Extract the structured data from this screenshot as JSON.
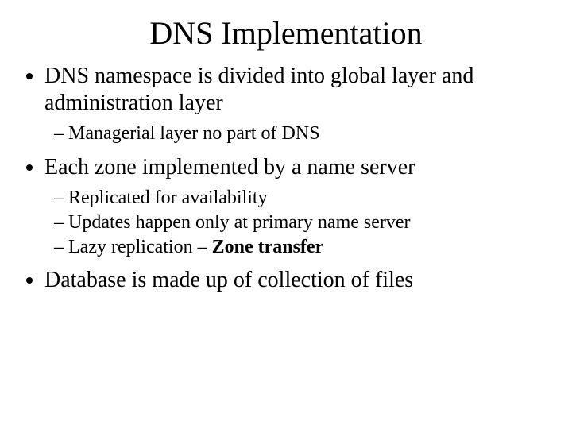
{
  "title": "DNS Implementation",
  "bullets": {
    "b1": "DNS namespace is divided into global layer and administration layer",
    "b1_sub1": "Managerial layer no part of DNS",
    "b2": "Each zone implemented by a name server",
    "b2_sub1": "Replicated for availability",
    "b2_sub2": "Updates happen only at primary name server",
    "b2_sub3_prefix": "Lazy replication – ",
    "b2_sub3_bold": "Zone transfer",
    "b3": "Database is made up of collection of files"
  },
  "colors": {
    "background": "#ffffff",
    "text": "#000000"
  },
  "fonts": {
    "family": "Times New Roman",
    "title_size_pt": 40,
    "bullet_size_pt": 28,
    "sub_bullet_size_pt": 24
  }
}
